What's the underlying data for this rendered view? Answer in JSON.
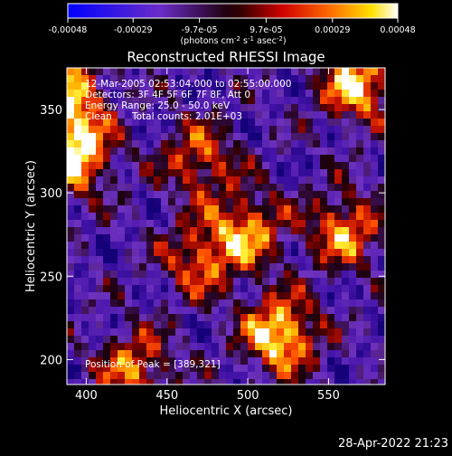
{
  "chart_data": {
    "type": "heatmap",
    "title": "Reconstructed RHESSI Image",
    "xlabel": "Heliocentric X (arcsec)",
    "ylabel": "Heliocentric Y (arcsec)",
    "xlim": [
      388,
      585
    ],
    "ylim": [
      185,
      375
    ],
    "x_ticks": [
      400,
      450,
      500,
      550
    ],
    "y_ticks": [
      200,
      250,
      300,
      350
    ],
    "colormap": "blue-purple-red-yellow-white",
    "colorbar": {
      "range": [
        -0.00048,
        0.00048
      ],
      "ticks": [
        "-0.00048",
        "-0.00029",
        "-9.7e-05",
        "9.7e-05",
        "0.00029",
        "0.00048"
      ],
      "unit_text": "(photons cm",
      "unit_sup1": "-2",
      "unit_mid1": " s",
      "unit_sup2": "-1",
      "unit_mid2": " asec",
      "unit_sup3": "-2",
      "unit_end": ")"
    },
    "annotations": {
      "time_range": "12-Mar-2005 02:53:04.000 to 02:55:00.000",
      "detectors": "Detectors: 3F 4F 5F 6F 7F 8F, Att 0",
      "energy": "Energy Range: 25.0 - 50.0 keV",
      "method": "Clean",
      "total_counts": "Total counts: 2.01E+03",
      "peak": "Position of Peak = [389,321]"
    },
    "bright_sources": [
      {
        "x": 392,
        "y": 323,
        "intensity": 1.0
      },
      {
        "x": 390,
        "y": 360,
        "intensity": 0.75
      },
      {
        "x": 568,
        "y": 365,
        "intensity": 0.85
      },
      {
        "x": 520,
        "y": 215,
        "intensity": 0.95
      },
      {
        "x": 500,
        "y": 278,
        "intensity": 0.7
      },
      {
        "x": 560,
        "y": 278,
        "intensity": 0.7
      },
      {
        "x": 470,
        "y": 260,
        "intensity": 0.6
      },
      {
        "x": 430,
        "y": 195,
        "intensity": 0.65
      },
      {
        "x": 470,
        "y": 320,
        "intensity": 0.6
      }
    ]
  },
  "footer": {
    "date": "28-Apr-2022 21:23"
  }
}
